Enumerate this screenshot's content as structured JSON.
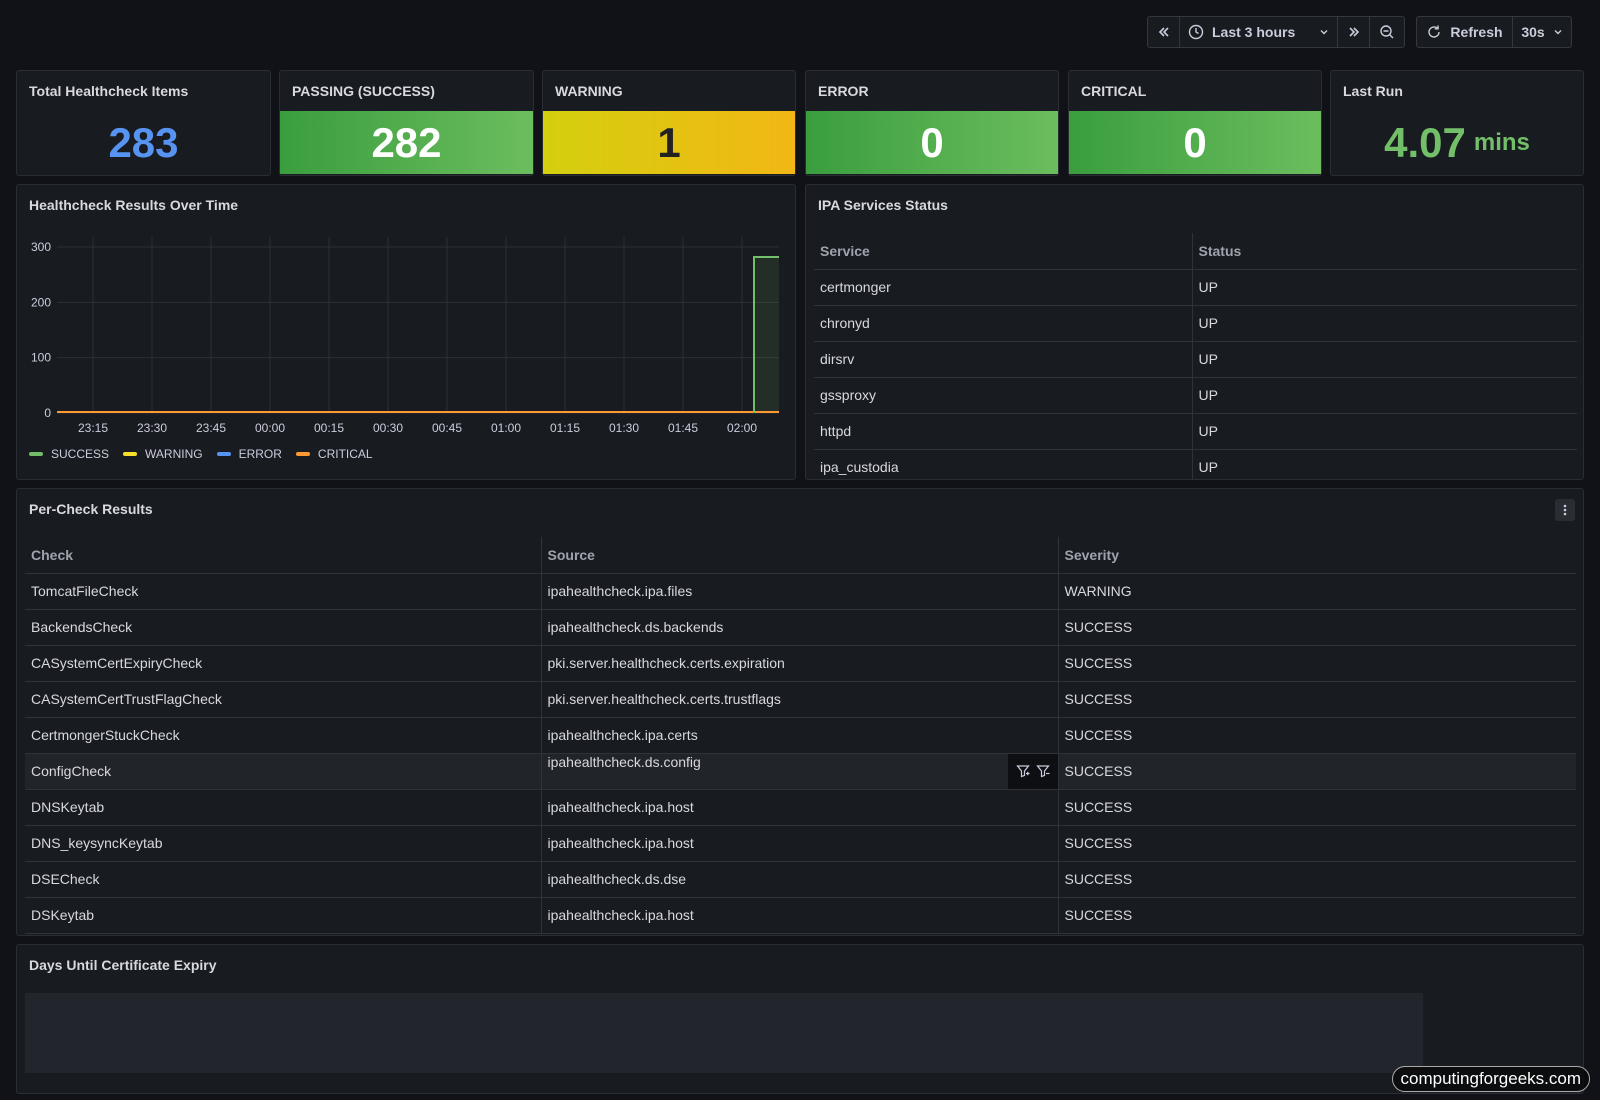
{
  "toolbar": {
    "time_range": "Last 3 hours",
    "refresh_label": "Refresh",
    "refresh_interval": "30s"
  },
  "stats": [
    {
      "title": "Total Healthcheck Items",
      "value": "283",
      "color": "#5794f2"
    },
    {
      "title": "PASSING (SUCCESS)",
      "value": "282",
      "color": "#ffffff"
    },
    {
      "title": "WARNING",
      "value": "1",
      "color": "#222222"
    },
    {
      "title": "ERROR",
      "value": "0",
      "color": "#ffffff"
    },
    {
      "title": "CRITICAL",
      "value": "0",
      "color": "#ffffff"
    },
    {
      "title": "Last Run",
      "value": "4.07",
      "unit": "mins",
      "color": "#73bf69"
    }
  ],
  "chart": {
    "title": "Healthcheck Results Over Time"
  },
  "chart_data": {
    "type": "line",
    "title": "Healthcheck Results Over Time",
    "x": [
      "23:15",
      "23:30",
      "23:45",
      "00:00",
      "00:15",
      "00:30",
      "00:45",
      "01:00",
      "01:15",
      "01:30",
      "01:45",
      "02:00"
    ],
    "y_ticks": [
      "0",
      "100",
      "200",
      "300"
    ],
    "ylim": [
      0,
      320
    ],
    "grid": true,
    "legend_position": "bottom-left",
    "series": [
      {
        "name": "SUCCESS",
        "color": "#73bf69",
        "last_value": 282
      },
      {
        "name": "WARNING",
        "color": "#fade2a",
        "last_value": 1
      },
      {
        "name": "ERROR",
        "color": "#5794f2",
        "last_value": 0
      },
      {
        "name": "CRITICAL",
        "color": "#ff9830",
        "last_value": 0
      }
    ]
  },
  "services": {
    "title": "IPA Services Status",
    "columns": [
      "Service",
      "Status"
    ],
    "rows": [
      [
        "certmonger",
        "UP"
      ],
      [
        "chronyd",
        "UP"
      ],
      [
        "dirsrv",
        "UP"
      ],
      [
        "gssproxy",
        "UP"
      ],
      [
        "httpd",
        "UP"
      ],
      [
        "ipa_custodia",
        "UP"
      ]
    ]
  },
  "checks": {
    "title": "Per-Check Results",
    "columns": [
      "Check",
      "Source",
      "Severity"
    ],
    "rows": [
      [
        "TomcatFileCheck",
        "ipahealthcheck.ipa.files",
        "WARNING"
      ],
      [
        "BackendsCheck",
        "ipahealthcheck.ds.backends",
        "SUCCESS"
      ],
      [
        "CASystemCertExpiryCheck",
        "pki.server.healthcheck.certs.expiration",
        "SUCCESS"
      ],
      [
        "CASystemCertTrustFlagCheck",
        "pki.server.healthcheck.certs.trustflags",
        "SUCCESS"
      ],
      [
        "CertmongerStuckCheck",
        "ipahealthcheck.ipa.certs",
        "SUCCESS"
      ],
      [
        "ConfigCheck",
        "ipahealthcheck.ds.config",
        "SUCCESS"
      ],
      [
        "DNSKeytab",
        "ipahealthcheck.ipa.host",
        "SUCCESS"
      ],
      [
        "DNS_keysyncKeytab",
        "ipahealthcheck.ipa.host",
        "SUCCESS"
      ],
      [
        "DSECheck",
        "ipahealthcheck.ds.dse",
        "SUCCESS"
      ],
      [
        "DSKeytab",
        "ipahealthcheck.ipa.host",
        "SUCCESS"
      ]
    ]
  },
  "cert": {
    "title": "Days Until Certificate Expiry"
  },
  "watermark": "computingforgeeks.com"
}
